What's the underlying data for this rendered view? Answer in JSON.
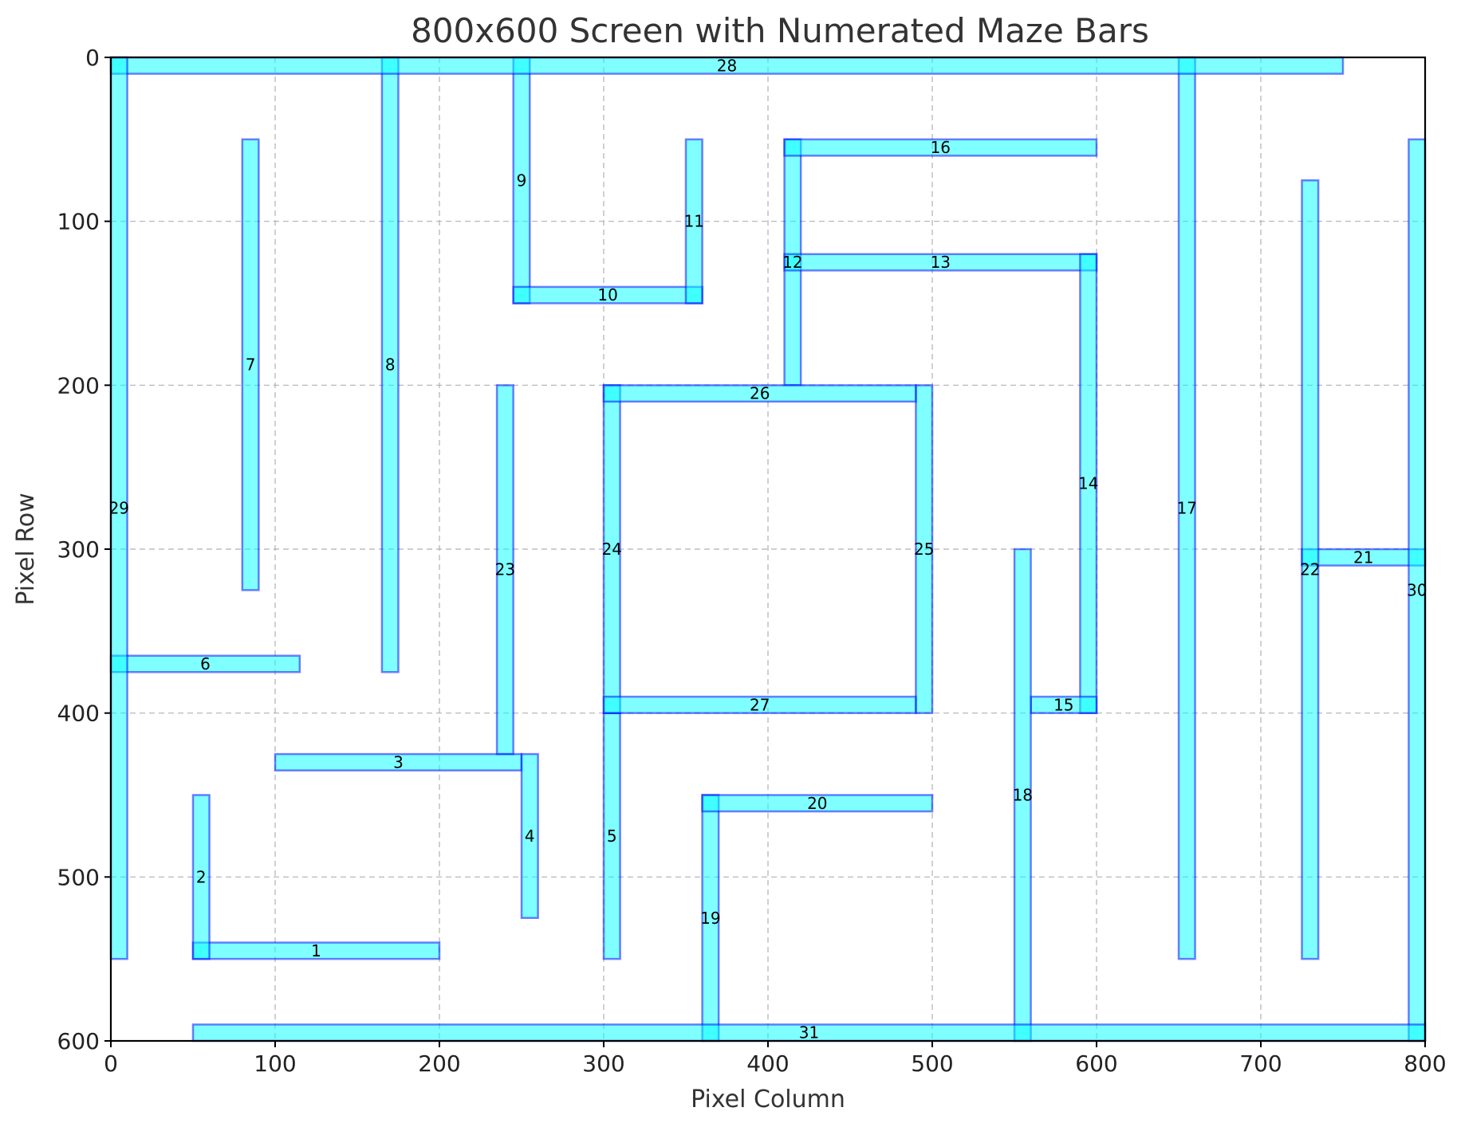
{
  "chart_data": {
    "type": "bar",
    "title": "800x600 Screen with Numerated Maze Bars",
    "xlabel": "Pixel Column",
    "ylabel": "Pixel Row",
    "xlim": [
      0,
      800
    ],
    "ylim": [
      600,
      0
    ],
    "x_ticks": [
      "0",
      "100",
      "200",
      "300",
      "400",
      "500",
      "600",
      "700",
      "800"
    ],
    "y_ticks": [
      "0",
      "100",
      "200",
      "300",
      "400",
      "500",
      "600"
    ],
    "grid": true,
    "bar_fill": "#00ffff",
    "bar_edge": "#0000ff",
    "bars": [
      {
        "id": "1",
        "x": 50,
        "y": 540,
        "w": 150,
        "h": 10
      },
      {
        "id": "2",
        "x": 50,
        "y": 450,
        "w": 10,
        "h": 100
      },
      {
        "id": "3",
        "x": 100,
        "y": 425,
        "w": 150,
        "h": 10
      },
      {
        "id": "4",
        "x": 250,
        "y": 425,
        "w": 10,
        "h": 100
      },
      {
        "id": "5",
        "x": 300,
        "y": 400,
        "w": 10,
        "h": 150
      },
      {
        "id": "6",
        "x": 0,
        "y": 365,
        "w": 115,
        "h": 10
      },
      {
        "id": "7",
        "x": 80,
        "y": 50,
        "w": 10,
        "h": 275
      },
      {
        "id": "8",
        "x": 165,
        "y": 0,
        "w": 10,
        "h": 375
      },
      {
        "id": "9",
        "x": 245,
        "y": 0,
        "w": 10,
        "h": 150
      },
      {
        "id": "10",
        "x": 245,
        "y": 140,
        "w": 115,
        "h": 10
      },
      {
        "id": "11",
        "x": 350,
        "y": 50,
        "w": 10,
        "h": 100
      },
      {
        "id": "12",
        "x": 410,
        "y": 50,
        "w": 10,
        "h": 150
      },
      {
        "id": "13",
        "x": 410,
        "y": 120,
        "w": 190,
        "h": 10
      },
      {
        "id": "14",
        "x": 590,
        "y": 120,
        "w": 10,
        "h": 280
      },
      {
        "id": "15",
        "x": 560,
        "y": 390,
        "w": 40,
        "h": 10
      },
      {
        "id": "16",
        "x": 410,
        "y": 50,
        "w": 190,
        "h": 10
      },
      {
        "id": "17",
        "x": 650,
        "y": 0,
        "w": 10,
        "h": 550
      },
      {
        "id": "18",
        "x": 550,
        "y": 300,
        "w": 10,
        "h": 300
      },
      {
        "id": "19",
        "x": 360,
        "y": 450,
        "w": 10,
        "h": 150
      },
      {
        "id": "20",
        "x": 360,
        "y": 450,
        "w": 140,
        "h": 10
      },
      {
        "id": "21",
        "x": 725,
        "y": 300,
        "w": 75,
        "h": 10
      },
      {
        "id": "22",
        "x": 725,
        "y": 75,
        "w": 10,
        "h": 475
      },
      {
        "id": "23",
        "x": 235,
        "y": 200,
        "w": 10,
        "h": 225
      },
      {
        "id": "24",
        "x": 300,
        "y": 200,
        "w": 10,
        "h": 200
      },
      {
        "id": "25",
        "x": 490,
        "y": 200,
        "w": 10,
        "h": 200
      },
      {
        "id": "26",
        "x": 300,
        "y": 200,
        "w": 190,
        "h": 10
      },
      {
        "id": "27",
        "x": 300,
        "y": 390,
        "w": 190,
        "h": 10
      },
      {
        "id": "28",
        "x": 0,
        "y": 0,
        "w": 750,
        "h": 10
      },
      {
        "id": "29",
        "x": 0,
        "y": 0,
        "w": 10,
        "h": 550
      },
      {
        "id": "30",
        "x": 790,
        "y": 50,
        "w": 10,
        "h": 550
      },
      {
        "id": "31",
        "x": 50,
        "y": 590,
        "w": 750,
        "h": 10
      }
    ]
  }
}
